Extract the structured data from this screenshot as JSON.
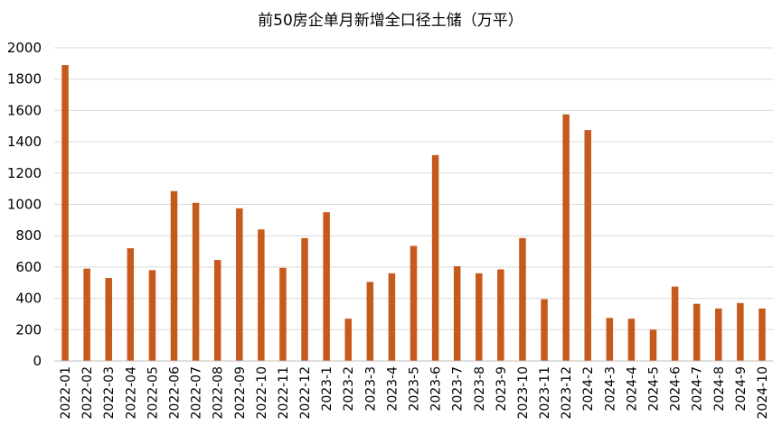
{
  "chart_data": {
    "type": "bar",
    "title": "前50房企单月新增全口径土储（万平）",
    "xlabel": "",
    "ylabel": "",
    "ylim": [
      0,
      2000
    ],
    "yticks": [
      0,
      200,
      400,
      600,
      800,
      1000,
      1200,
      1400,
      1600,
      1800,
      2000
    ],
    "grid": true,
    "legend": "none",
    "bar_color": "#C55A1C",
    "categories": [
      "2022-01",
      "2022-02",
      "2022-03",
      "2022-04",
      "2022-05",
      "2022-06",
      "2022-07",
      "2022-08",
      "2022-09",
      "2022-10",
      "2022-11",
      "2022-12",
      "2023-1",
      "2023-2",
      "2023-3",
      "2023-4",
      "2023-5",
      "2023-6",
      "2023-7",
      "2023-8",
      "2023-9",
      "2023-10",
      "2023-11",
      "2023-12",
      "2024-2",
      "2024-3",
      "2024-4",
      "2024-5",
      "2024-6",
      "2024-7",
      "2024-8",
      "2024-9",
      "2024-10"
    ],
    "values": [
      1890,
      590,
      530,
      720,
      580,
      1085,
      1010,
      645,
      975,
      840,
      595,
      785,
      950,
      270,
      505,
      560,
      735,
      1315,
      605,
      560,
      585,
      785,
      395,
      1575,
      1475,
      275,
      270,
      200,
      475,
      365,
      335,
      370,
      335
    ]
  }
}
